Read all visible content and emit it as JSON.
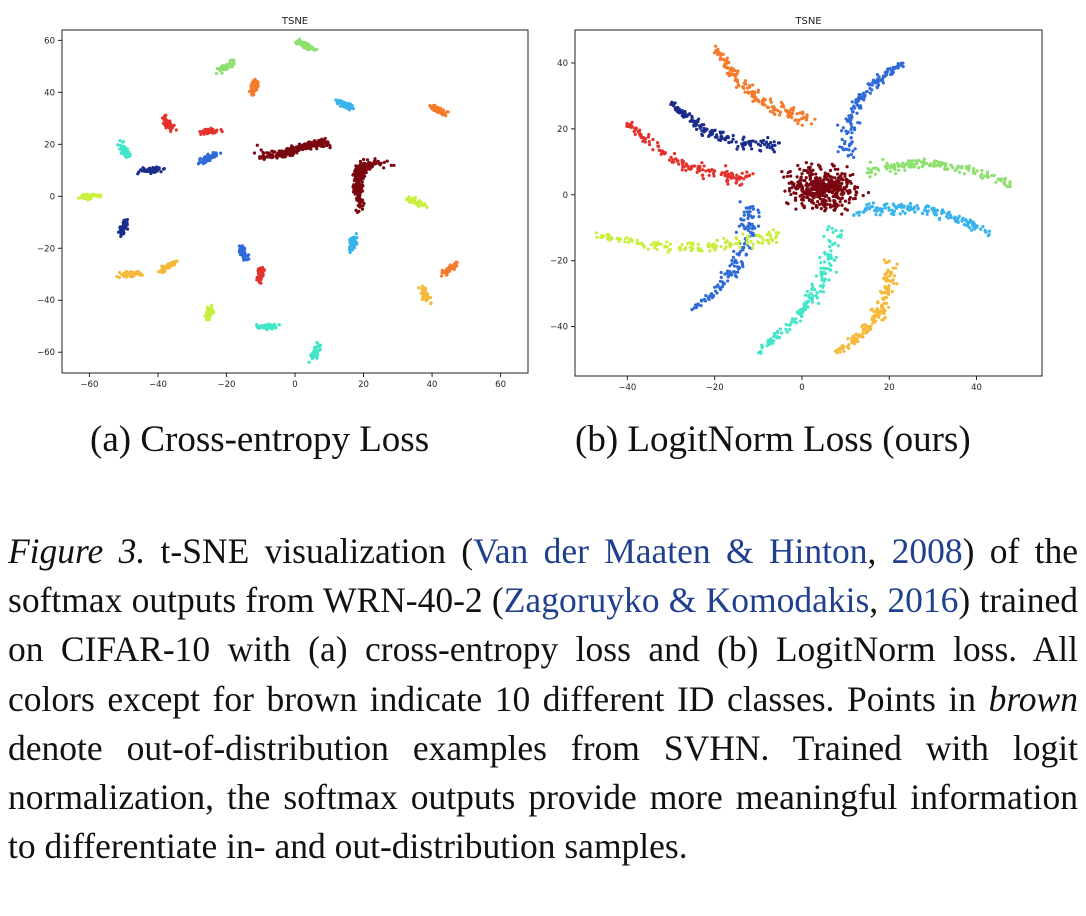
{
  "figure": {
    "panels": [
      {
        "id": "a",
        "subcaption": "(a) Cross-entropy Loss"
      },
      {
        "id": "b",
        "subcaption": "(b) LogitNorm Loss (ours)"
      }
    ],
    "caption": {
      "label": "Figure 3.",
      "text_1": " t-SNE visualization (",
      "cite_1": "Van der Maaten & Hinton",
      "text_2": ", ",
      "cite_2": "2008",
      "text_3": ") of the softmax outputs from WRN-40-2 (",
      "cite_3": "Zagoruyko & Komodakis",
      "text_4": ", ",
      "cite_4": "2016",
      "text_5": ") trained on CIFAR-10 with (a) cross-entropy loss and (b) LogitNorm loss. All colors except for brown indicate 10 different ID classes. Points in ",
      "emph": "brown",
      "text_6": " denote out-of-distribution examples from SVHN. Trained with logit normalization, the softmax outputs provide more meaningful information to differentiate in- and out-distribution samples."
    }
  },
  "chart_data": [
    {
      "type": "scatter",
      "title": "TSNE",
      "xlabel": "",
      "ylabel": "",
      "xlim": [
        -68,
        68
      ],
      "ylim": [
        -68,
        64
      ],
      "xticks": [
        -60,
        -40,
        -20,
        0,
        20,
        40,
        60
      ],
      "yticks": [
        -60,
        -40,
        -20,
        0,
        20,
        40,
        60
      ],
      "grid": false,
      "legend": "none",
      "series": [
        {
          "color": "#1a2d8c",
          "clusters": [
            [
              -42,
              10
            ],
            [
              -50,
              -12
            ]
          ]
        },
        {
          "color": "#2f6bd8",
          "clusters": [
            [
              -25,
              15
            ],
            [
              -15,
              -22
            ]
          ]
        },
        {
          "color": "#39b3ec",
          "clusters": [
            [
              17,
              -18
            ],
            [
              15,
              35
            ]
          ]
        },
        {
          "color": "#41e6c8",
          "clusters": [
            [
              -50,
              18
            ],
            [
              -8,
              -50
            ],
            [
              6,
              -60
            ]
          ]
        },
        {
          "color": "#8ee070",
          "clusters": [
            [
              3,
              58
            ],
            [
              -20,
              50
            ]
          ]
        },
        {
          "color": "#c9ef3e",
          "clusters": [
            [
              -60,
              0
            ],
            [
              -25,
              -45
            ],
            [
              35,
              -2
            ]
          ]
        },
        {
          "color": "#f5b93a",
          "clusters": [
            [
              -37,
              -27
            ],
            [
              38,
              -38
            ],
            [
              -48,
              -30
            ]
          ]
        },
        {
          "color": "#f57a2a",
          "clusters": [
            [
              -12,
              42
            ],
            [
              42,
              33
            ],
            [
              45,
              -28
            ]
          ]
        },
        {
          "color": "#e5312b",
          "clusters": [
            [
              -37,
              28
            ],
            [
              -25,
              25
            ],
            [
              -10,
              -30
            ]
          ]
        },
        {
          "color": "#7a0610",
          "clusters": [
            [
              0,
              18
            ],
            [
              22,
              5
            ]
          ],
          "label_role": "out-of-distribution"
        }
      ]
    },
    {
      "type": "scatter",
      "title": "TSNE",
      "xlabel": "",
      "ylabel": "",
      "xlim": [
        -52,
        55
      ],
      "ylim": [
        -55,
        50
      ],
      "xticks": [
        -40,
        -20,
        0,
        20,
        40
      ],
      "yticks": [
        -40,
        -20,
        0,
        20,
        40
      ],
      "grid": false,
      "legend": "none",
      "series": [
        {
          "color": "#1a2d8c",
          "arm_from": [
            -5,
            15
          ],
          "arm_to": [
            -30,
            28
          ]
        },
        {
          "color": "#2f6bd8",
          "arm_from": [
            -12,
            -3
          ],
          "arm_to": [
            -25,
            -35
          ]
        },
        {
          "color": "#2f6bd8",
          "arm_from": [
            10,
            12
          ],
          "arm_to": [
            23,
            40
          ]
        },
        {
          "color": "#39b3ec",
          "arm_from": [
            12,
            -5
          ],
          "arm_to": [
            43,
            -12
          ]
        },
        {
          "color": "#41e6c8",
          "arm_from": [
            8,
            -10
          ],
          "arm_to": [
            -10,
            -48
          ]
        },
        {
          "color": "#8ee070",
          "arm_from": [
            15,
            7
          ],
          "arm_to": [
            48,
            3
          ]
        },
        {
          "color": "#c9ef3e",
          "arm_from": [
            -5,
            -12
          ],
          "arm_to": [
            -48,
            -12
          ]
        },
        {
          "color": "#f5b93a",
          "arm_from": [
            20,
            -20
          ],
          "arm_to": [
            8,
            -48
          ]
        },
        {
          "color": "#f57a2a",
          "arm_from": [
            3,
            22
          ],
          "arm_to": [
            -20,
            45
          ]
        },
        {
          "color": "#e5312b",
          "arm_from": [
            -12,
            5
          ],
          "arm_to": [
            -40,
            22
          ]
        },
        {
          "color": "#7a0610",
          "center": [
            5,
            2
          ],
          "label_role": "out-of-distribution"
        }
      ]
    }
  ]
}
